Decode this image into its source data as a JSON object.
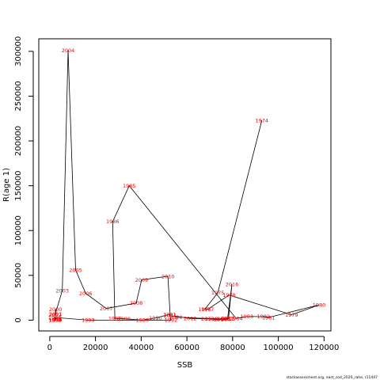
{
  "chart_data": {
    "type": "line",
    "xlabel": "SSB",
    "ylabel": "R(age 1)",
    "xlim": [
      -4800,
      123000
    ],
    "ylim": [
      -12000,
      314000
    ],
    "x_ticks": [
      0,
      20000,
      40000,
      60000,
      80000,
      100000,
      120000
    ],
    "y_ticks": [
      0,
      50000,
      100000,
      150000,
      200000,
      250000,
      300000
    ],
    "x_tick_labels": [
      "0",
      "20000",
      "40000",
      "60000",
      "80000",
      "100000",
      "120000"
    ],
    "y_tick_labels": [
      "0",
      "50000",
      "100000",
      "150000",
      "200000",
      "250000",
      "300000"
    ],
    "line_color": "#000000",
    "label_color": "#ff0000",
    "footnote": "stockassessment.org, east_cod_2020_rahe, r11447",
    "points": [
      {
        "year": "1974",
        "x": 92800,
        "y": 223000
      },
      {
        "year": "1975",
        "x": 73500,
        "y": 30500
      },
      {
        "year": "1976",
        "x": 67800,
        "y": 12000
      },
      {
        "year": "1977",
        "x": 69000,
        "y": 12000
      },
      {
        "year": "1978",
        "x": 78500,
        "y": 28000
      },
      {
        "year": "1979",
        "x": 105800,
        "y": 6000
      },
      {
        "year": "1980",
        "x": 117800,
        "y": 17000
      },
      {
        "year": "1981",
        "x": 95700,
        "y": 3000
      },
      {
        "year": "1982",
        "x": 93500,
        "y": 4000
      },
      {
        "year": "1983",
        "x": 86200,
        "y": 4000
      },
      {
        "year": "1984",
        "x": 81500,
        "y": 2000
      },
      {
        "year": "1985",
        "x": 34800,
        "y": 150000
      },
      {
        "year": "1986",
        "x": 27500,
        "y": 110000
      },
      {
        "year": "1987",
        "x": 28500,
        "y": 2000
      },
      {
        "year": "1988",
        "x": 32500,
        "y": 1500
      },
      {
        "year": "1989",
        "x": 40500,
        "y": 0
      },
      {
        "year": "1990",
        "x": 46300,
        "y": 2500
      },
      {
        "year": "1991",
        "x": 52500,
        "y": 6500
      },
      {
        "year": "1992",
        "x": 53000,
        "y": 0
      },
      {
        "year": "1993",
        "x": 16800,
        "y": 0
      },
      {
        "year": "1994",
        "x": 2200,
        "y": 3000
      },
      {
        "year": "1995",
        "x": 2300,
        "y": 0
      },
      {
        "year": "1996",
        "x": 2400,
        "y": 0
      },
      {
        "year": "1997",
        "x": 2300,
        "y": 0
      },
      {
        "year": "1998",
        "x": 2300,
        "y": 0
      },
      {
        "year": "1999",
        "x": 2500,
        "y": 0
      },
      {
        "year": "2000",
        "x": 2500,
        "y": 12000
      },
      {
        "year": "2001",
        "x": 2500,
        "y": 7000
      },
      {
        "year": "2002",
        "x": 2300,
        "y": 6000
      },
      {
        "year": "2003",
        "x": 5500,
        "y": 33000
      },
      {
        "year": "2004",
        "x": 8000,
        "y": 301000
      },
      {
        "year": "2005",
        "x": 11300,
        "y": 56000
      },
      {
        "year": "2006",
        "x": 15700,
        "y": 30000
      },
      {
        "year": "2007",
        "x": 24700,
        "y": 13000
      },
      {
        "year": "2008",
        "x": 37800,
        "y": 19000
      },
      {
        "year": "2009",
        "x": 40200,
        "y": 45000
      },
      {
        "year": "2010",
        "x": 51700,
        "y": 49000
      },
      {
        "year": "2011",
        "x": 52700,
        "y": 5000
      },
      {
        "year": "2012",
        "x": 61400,
        "y": 2000
      },
      {
        "year": "2013",
        "x": 69000,
        "y": 1500
      },
      {
        "year": "2014",
        "x": 74600,
        "y": 500
      },
      {
        "year": "2015",
        "x": 78200,
        "y": 1500
      },
      {
        "year": "2016",
        "x": 79700,
        "y": 40000
      },
      {
        "year": "2017",
        "x": 77800,
        "y": 2000
      },
      {
        "year": "2018",
        "x": 76000,
        "y": 1500
      },
      {
        "year": "2019",
        "x": 70800,
        "y": 1500
      },
      {
        "year": "2020",
        "x": 55200,
        "y": 3500
      }
    ]
  }
}
